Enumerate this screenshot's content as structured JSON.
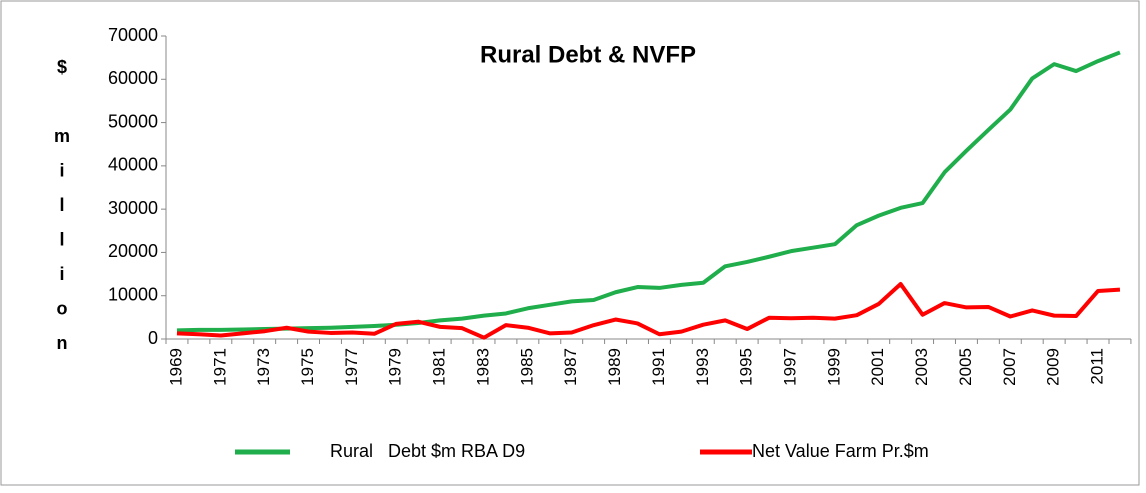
{
  "chart_data": {
    "type": "line",
    "title": "Rural Debt & NVFP",
    "y_label": "$ million",
    "categories": [
      "1969",
      null,
      "1971",
      null,
      "1973",
      null,
      "1975",
      null,
      "1977",
      null,
      "1979",
      null,
      "1981",
      null,
      "1983",
      null,
      "1985",
      null,
      "1987",
      null,
      "1989",
      null,
      "1991",
      null,
      "1993",
      null,
      "1995",
      null,
      "1997",
      null,
      "1999",
      null,
      "2001",
      null,
      "2003",
      null,
      "2005",
      null,
      "2007",
      null,
      "2009",
      null,
      "2011",
      null
    ],
    "series": [
      {
        "name": "Rural   Debt $m RBA D9",
        "color": "#1fae4b",
        "values": [
          2000,
          2100,
          2100,
          2200,
          2300,
          2400,
          2500,
          2600,
          2800,
          3000,
          3300,
          3700,
          4300,
          4700,
          5400,
          5900,
          7100,
          7900,
          8700,
          9000,
          10800,
          12000,
          11800,
          12500,
          13000,
          16800,
          17800,
          19000,
          20300,
          21100,
          21900,
          26300,
          28500,
          30300,
          31400,
          38500,
          43500,
          48300,
          53000,
          60200,
          63500,
          61900,
          64200,
          66200
        ]
      },
      {
        "name": "Net Value Farm Pr.$m",
        "color": "#ff0000",
        "values": [
          1300,
          1100,
          800,
          1300,
          1800,
          2600,
          1700,
          1400,
          1500,
          1200,
          3500,
          4000,
          2800,
          2500,
          300,
          3200,
          2600,
          1300,
          1500,
          3200,
          4500,
          3600,
          1100,
          1700,
          3300,
          4300,
          2300,
          4900,
          4800,
          4900,
          4700,
          5500,
          8100,
          12700,
          5600,
          8300,
          7300,
          7400,
          5200,
          6600,
          5400,
          5300,
          11100,
          11400
        ]
      }
    ],
    "ylim": [
      0,
      70000
    ],
    "yticks": [
      0,
      10000,
      20000,
      30000,
      40000,
      50000,
      60000,
      70000
    ],
    "grid": false
  }
}
